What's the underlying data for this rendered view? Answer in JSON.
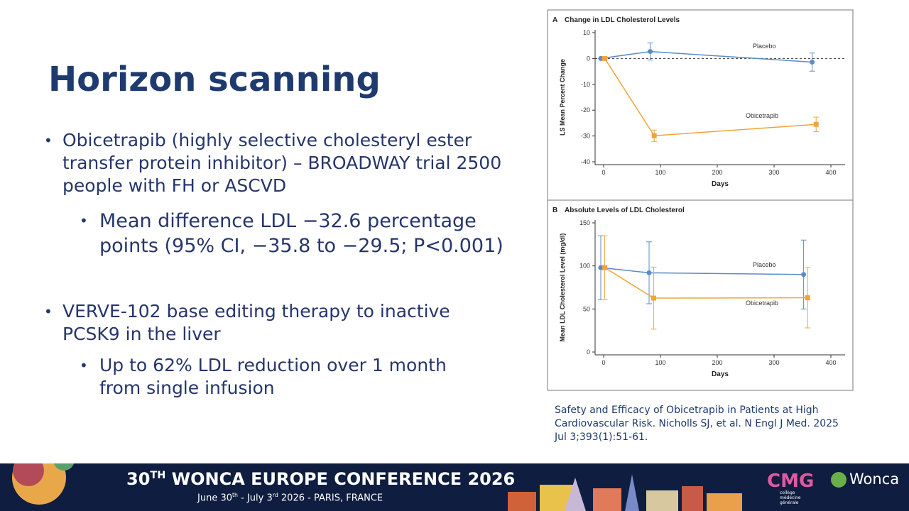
{
  "slide": {
    "title": "Horizon scanning",
    "bullets": [
      {
        "text": "Obicetrapib (highly selective cholesteryl ester transfer protein inhibitor) – BROADWAY trial 2500 people with FH or ASCVD",
        "sub": [
          "Mean difference LDL −32.6 percentage points (95% CI, −35.8 to −29.5; P<0.001)"
        ]
      },
      {
        "text": "VERVE-102 base editing therapy to inactive PCSK9 in the liver",
        "sub": [
          "Up to 62% LDL reduction over 1 month from single infusion"
        ]
      }
    ],
    "citation": "Safety and Efficacy of Obicetrapib in Patients at High Cardiovascular Risk. Nicholls SJ, et al. N Engl J Med. 2025 Jul 3;393(1):51-61.",
    "footer": {
      "number": "30",
      "number_suffix": "TH",
      "name": " WONCA EUROPE CONFERENCE 2026",
      "date_start": "June 30",
      "date_start_suffix": "th",
      "date_end": " - July 3",
      "date_end_suffix": "rd",
      "place": " 2026 - PARIS, FRANCE",
      "logo_cmg": "CMG",
      "logo_cmg_sub": "collège médecine générale",
      "logo_wonca": "Wonca"
    }
  },
  "chart_data": [
    {
      "type": "line",
      "panel": "A",
      "title": "Change in LDL Cholesterol Levels",
      "x_label": "Days",
      "y_label": "LS Mean Percent Change",
      "xlim": [
        -15,
        425
      ],
      "xticks": [
        0,
        100,
        200,
        300,
        400
      ],
      "ylim": [
        -40,
        10
      ],
      "yticks": [
        -40,
        -30,
        -20,
        -10,
        0,
        10
      ],
      "series": [
        {
          "name": "Placebo",
          "color": "#5b8cc8",
          "marker": "circle",
          "x": [
            -5,
            82,
            367
          ],
          "values": [
            0,
            2.7,
            -1.4
          ],
          "errors": [
            0,
            3.3,
            3.5
          ]
        },
        {
          "name": "Obicetrapib",
          "color": "#f0a43a",
          "marker": "square",
          "x": [
            2,
            89,
            374
          ],
          "values": [
            0,
            -29.9,
            -25.5
          ],
          "errors": [
            0,
            2.2,
            2.8
          ]
        }
      ]
    },
    {
      "type": "line",
      "panel": "B",
      "title": "Absolute Levels of LDL Cholesterol",
      "x_label": "Days",
      "y_label": "Mean LDL Cholesterol Level (mg/dl)",
      "xlim": [
        -15,
        425
      ],
      "xticks": [
        0,
        100,
        200,
        300,
        400
      ],
      "ylim": [
        0,
        150
      ],
      "yticks": [
        0,
        50,
        100,
        150
      ],
      "series": [
        {
          "name": "Placebo",
          "color": "#5b8cc8",
          "marker": "circle",
          "x": [
            -5,
            80,
            352
          ],
          "values": [
            98,
            92,
            90
          ],
          "errors": [
            37,
            36,
            40
          ]
        },
        {
          "name": "Obicetrapib",
          "color": "#f0a43a",
          "marker": "square",
          "x": [
            2,
            88,
            359
          ],
          "values": [
            98,
            62.6,
            63
          ],
          "errors": [
            37,
            36,
            35
          ]
        }
      ]
    }
  ]
}
